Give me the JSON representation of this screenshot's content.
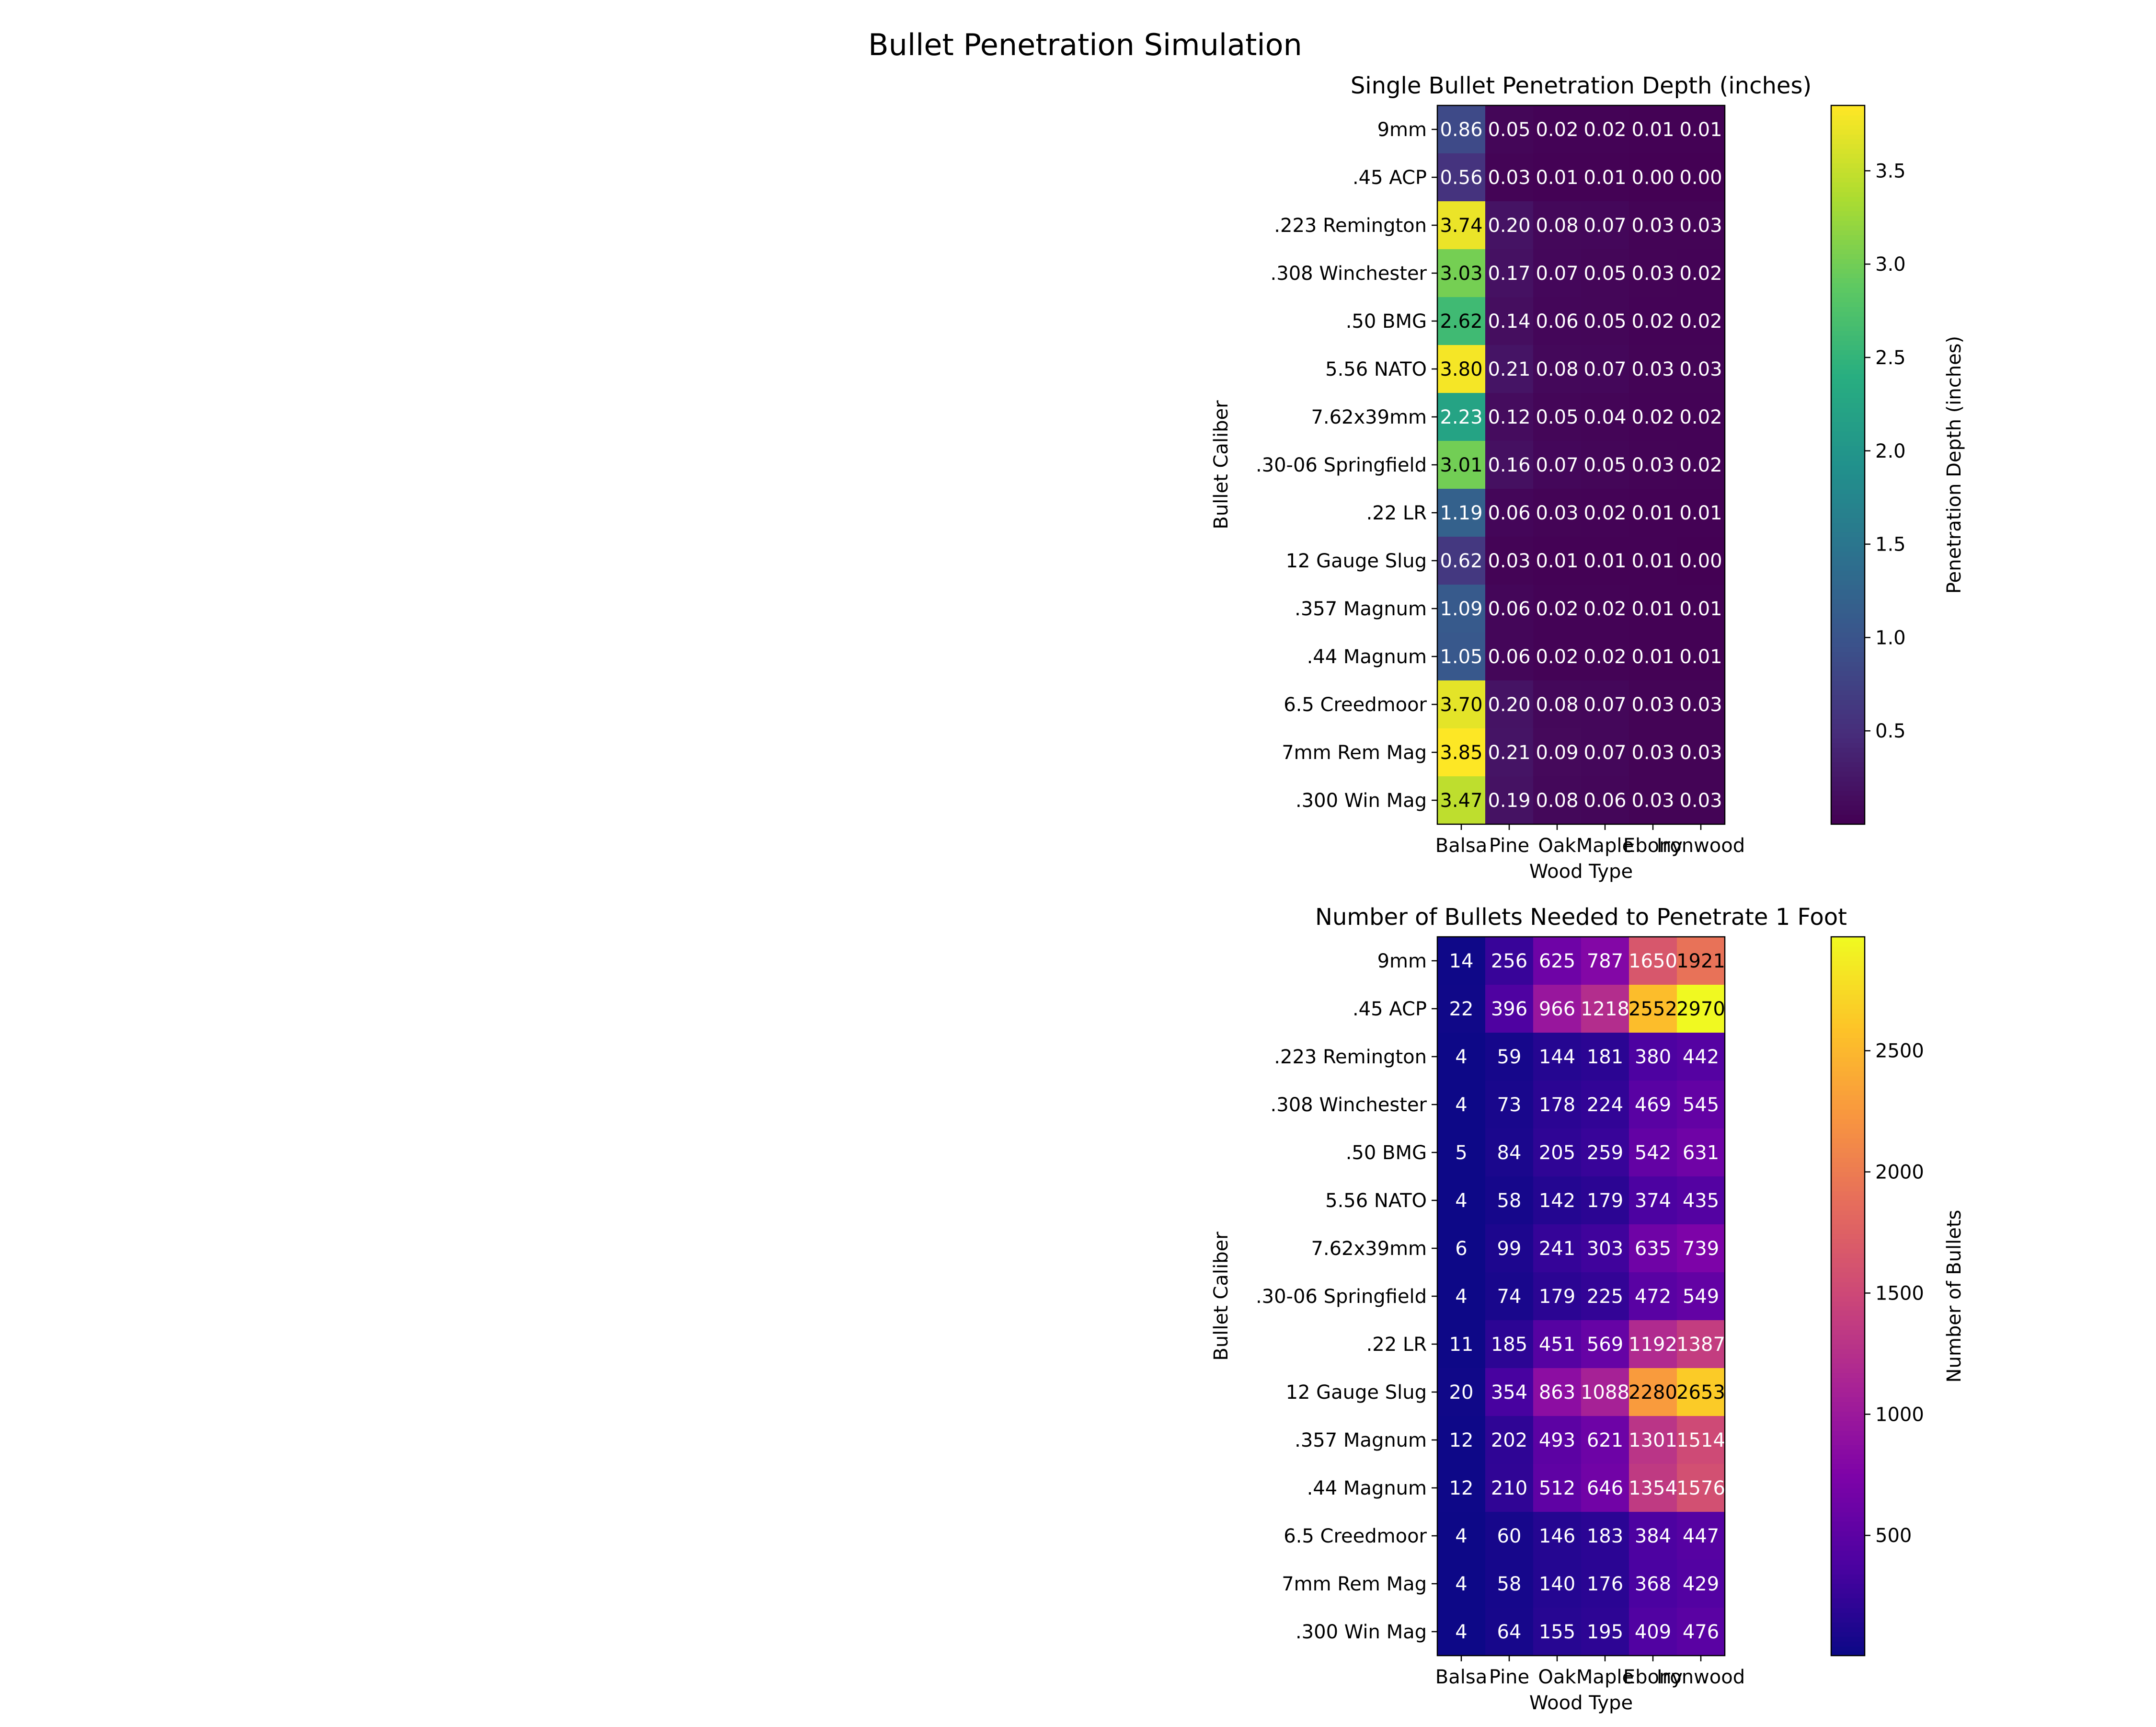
{
  "figure": {
    "suptitle": "Bullet Penetration Simulation"
  },
  "chart_data": [
    {
      "type": "heatmap",
      "title": "Single Bullet Penetration Depth (inches)",
      "xlabel": "Wood Type",
      "ylabel": "Bullet Caliber",
      "x_categories": [
        "Balsa",
        "Pine",
        "Oak",
        "Maple",
        "Ebony",
        "Ironwood"
      ],
      "y_categories": [
        "9mm",
        ".45 ACP",
        ".223 Remington",
        ".308 Winchester",
        ".50 BMG",
        "5.56 NATO",
        "7.62x39mm",
        ".30-06 Springfield",
        ".22 LR",
        "12 Gauge Slug",
        ".357 Magnum",
        ".44 Magnum",
        "6.5 Creedmoor",
        "7mm Rem Mag",
        ".300 Win Mag"
      ],
      "values": [
        [
          0.86,
          0.05,
          0.02,
          0.02,
          0.01,
          0.01
        ],
        [
          0.56,
          0.03,
          0.01,
          0.01,
          0.0,
          0.0
        ],
        [
          3.74,
          0.2,
          0.08,
          0.07,
          0.03,
          0.03
        ],
        [
          3.03,
          0.17,
          0.07,
          0.05,
          0.03,
          0.02
        ],
        [
          2.62,
          0.14,
          0.06,
          0.05,
          0.02,
          0.02
        ],
        [
          3.8,
          0.21,
          0.08,
          0.07,
          0.03,
          0.03
        ],
        [
          2.23,
          0.12,
          0.05,
          0.04,
          0.02,
          0.02
        ],
        [
          3.01,
          0.16,
          0.07,
          0.05,
          0.03,
          0.02
        ],
        [
          1.19,
          0.06,
          0.03,
          0.02,
          0.01,
          0.01
        ],
        [
          0.62,
          0.03,
          0.01,
          0.01,
          0.01,
          0.0
        ],
        [
          1.09,
          0.06,
          0.02,
          0.02,
          0.01,
          0.01
        ],
        [
          1.05,
          0.06,
          0.02,
          0.02,
          0.01,
          0.01
        ],
        [
          3.7,
          0.2,
          0.08,
          0.07,
          0.03,
          0.03
        ],
        [
          3.85,
          0.21,
          0.09,
          0.07,
          0.03,
          0.03
        ],
        [
          3.47,
          0.19,
          0.08,
          0.06,
          0.03,
          0.03
        ]
      ],
      "value_format": "2dp",
      "colormap": "viridis",
      "vmin": 0.0,
      "vmax": 3.85,
      "colorbar_label": "Penetration Depth (inches)",
      "colorbar_ticks": [
        0.5,
        1.0,
        1.5,
        2.0,
        2.5,
        3.0,
        3.5
      ],
      "colorbar_tick_labels": [
        "0.5",
        "1.0",
        "1.5",
        "2.0",
        "2.5",
        "3.0",
        "3.5"
      ]
    },
    {
      "type": "heatmap",
      "title": "Number of Bullets Needed to Penetrate 1 Foot",
      "xlabel": "Wood Type",
      "ylabel": "Bullet Caliber",
      "x_categories": [
        "Balsa",
        "Pine",
        "Oak",
        "Maple",
        "Ebony",
        "Ironwood"
      ],
      "y_categories": [
        "9mm",
        ".45 ACP",
        ".223 Remington",
        ".308 Winchester",
        ".50 BMG",
        "5.56 NATO",
        "7.62x39mm",
        ".30-06 Springfield",
        ".22 LR",
        "12 Gauge Slug",
        ".357 Magnum",
        ".44 Magnum",
        "6.5 Creedmoor",
        "7mm Rem Mag",
        ".300 Win Mag"
      ],
      "values": [
        [
          14,
          256,
          625,
          787,
          1650,
          1921
        ],
        [
          22,
          396,
          966,
          1218,
          2552,
          2970
        ],
        [
          4,
          59,
          144,
          181,
          380,
          442
        ],
        [
          4,
          73,
          178,
          224,
          469,
          545
        ],
        [
          5,
          84,
          205,
          259,
          542,
          631
        ],
        [
          4,
          58,
          142,
          179,
          374,
          435
        ],
        [
          6,
          99,
          241,
          303,
          635,
          739
        ],
        [
          4,
          74,
          179,
          225,
          472,
          549
        ],
        [
          11,
          185,
          451,
          569,
          1192,
          1387
        ],
        [
          20,
          354,
          863,
          1088,
          2280,
          2653
        ],
        [
          12,
          202,
          493,
          621,
          1301,
          1514
        ],
        [
          12,
          210,
          512,
          646,
          1354,
          1576
        ],
        [
          4,
          60,
          146,
          183,
          384,
          447
        ],
        [
          4,
          58,
          140,
          176,
          368,
          429
        ],
        [
          4,
          64,
          155,
          195,
          409,
          476
        ]
      ],
      "value_format": "int",
      "colormap": "plasma",
      "vmin": 4,
      "vmax": 2970,
      "colorbar_label": "Number of Bullets",
      "colorbar_ticks": [
        500,
        1000,
        1500,
        2000,
        2500
      ],
      "colorbar_tick_labels": [
        "500",
        "1000",
        "1500",
        "2000",
        "2500"
      ]
    }
  ]
}
